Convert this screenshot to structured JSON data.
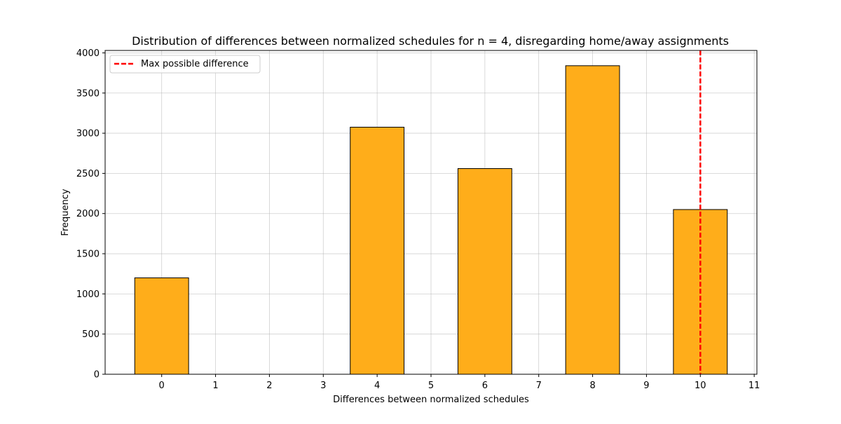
{
  "chart_data": {
    "type": "bar",
    "title": "Distribution of differences between normalized schedules for n = 4, disregarding home/away assignments",
    "xlabel": "Differences between normalized schedules",
    "ylabel": "Frequency",
    "x_ticks": [
      "0",
      "1",
      "2",
      "3",
      "4",
      "5",
      "6",
      "7",
      "8",
      "9",
      "10",
      "11"
    ],
    "y_ticks": [
      "0",
      "500",
      "1000",
      "1500",
      "2000",
      "2500",
      "3000",
      "3500",
      "4000"
    ],
    "xlim": [
      -1.05,
      11.05
    ],
    "ylim": [
      0,
      4030
    ],
    "bars": [
      {
        "x": 0,
        "value": 1200
      },
      {
        "x": 4,
        "value": 3075
      },
      {
        "x": 6,
        "value": 2560
      },
      {
        "x": 8,
        "value": 3840
      },
      {
        "x": 10,
        "value": 2050
      }
    ],
    "bar_width": 1.0,
    "bar_color": "#ffad1a",
    "bar_edge_color": "#000000",
    "reference_line": {
      "x": 10,
      "label": "Max possible difference",
      "color": "#ff0000",
      "style": "dashed"
    },
    "grid": true,
    "legend_position": "top-left"
  }
}
